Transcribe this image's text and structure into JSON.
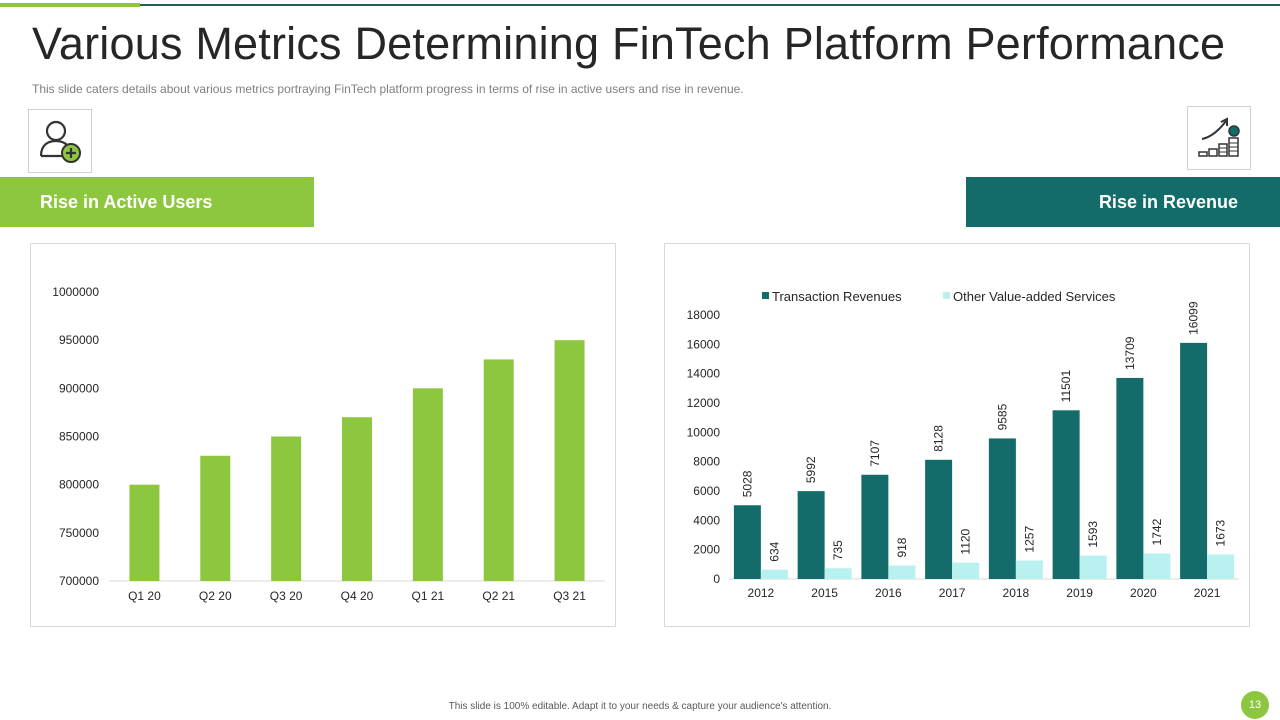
{
  "slide": {
    "title": "Various Metrics Determining FinTech Platform Performance",
    "subtitle": "This slide caters details about various  metrics portraying FinTech platform progress in terms of rise in active users and rise in revenue.",
    "footer": "This slide is 100% editable. Adapt it to your needs & capture your audience's attention.",
    "page_number": "13"
  },
  "sections": {
    "users_label": "Rise in Active Users",
    "revenue_label": "Rise in Revenue"
  },
  "icons": {
    "users": "add-user-icon",
    "revenue": "revenue-growth-icon"
  },
  "colors": {
    "green": "#8dc63f",
    "teal": "#136c69",
    "light_cyan": "#b8f1ef"
  },
  "chart_data": [
    {
      "type": "bar",
      "title": "",
      "categories": [
        "Q1 20",
        "Q2 20",
        "Q3 20",
        "Q4 20",
        "Q1 21",
        "Q2 21",
        "Q3 21"
      ],
      "values": [
        800000,
        830000,
        850000,
        870000,
        900000,
        930000,
        950000
      ],
      "ylim": [
        700000,
        1000000
      ],
      "yticks": [
        "1000000",
        "950000",
        "900000",
        "850000",
        "800000",
        "750000",
        "700000"
      ],
      "xlabel": "",
      "ylabel": "",
      "color": "#8dc63f"
    },
    {
      "type": "bar",
      "title": "",
      "categories": [
        "2012",
        "2015",
        "2016",
        "2017",
        "2018",
        "2019",
        "2020",
        "2021"
      ],
      "series": [
        {
          "name": "Transaction Revenues",
          "color": "#136c69",
          "values": [
            5028,
            5992,
            7107,
            8128,
            9585,
            11501,
            13709,
            16099
          ]
        },
        {
          "name": "Other Value-added Services",
          "color": "#b8f1ef",
          "values": [
            634,
            735,
            918,
            1120,
            1257,
            1593,
            1742,
            1673
          ]
        }
      ],
      "ylim": [
        0,
        18000
      ],
      "yticks": [
        "18000",
        "16000",
        "14000",
        "12000",
        "10000",
        "8000",
        "6000",
        "4000",
        "2000",
        "0"
      ],
      "xlabel": "",
      "ylabel": "",
      "legend_position": "top"
    }
  ]
}
